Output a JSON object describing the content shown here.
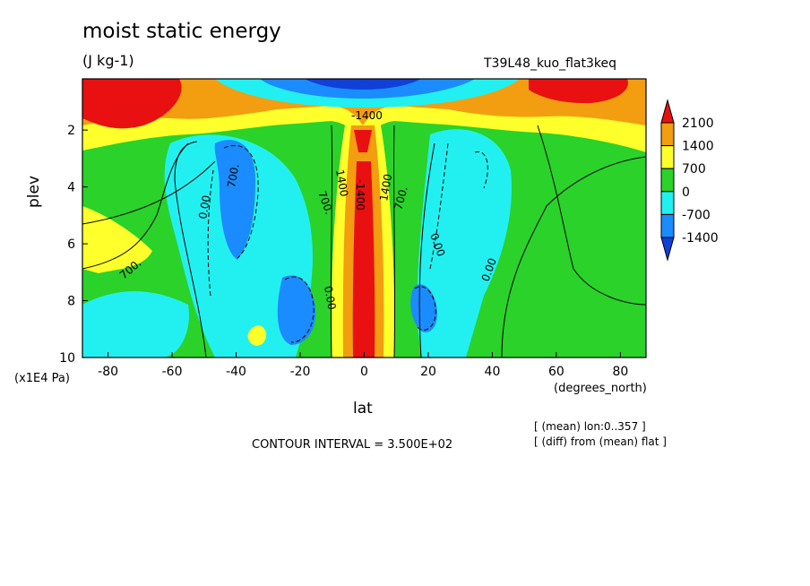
{
  "chart_data": {
    "type": "heatmap",
    "title": "moist static energy",
    "units": "(J kg-1)",
    "run_label": "T39L48_kuo_flat3keq",
    "xlabel": "lat",
    "x_units": "(degrees_north)",
    "ylabel": "plev",
    "y_units": "(x1E4 Pa)",
    "xlim": [
      -88,
      88
    ],
    "ylim": [
      10,
      0.2
    ],
    "x_ticks": [
      "-80",
      "-60",
      "-40",
      "-20",
      "0",
      "20",
      "40",
      "60",
      "80"
    ],
    "y_ticks": [
      "2",
      "4",
      "6",
      "8",
      "10"
    ],
    "colorbar": {
      "labels": [
        "2100",
        "1400",
        "700",
        "0",
        "-700",
        "-1400"
      ],
      "colors": [
        "#e81010",
        "#f39d10",
        "#ffff2b",
        "#2ad22a",
        "#22f0f0",
        "#1a8cff",
        "#1040d8"
      ]
    },
    "contour_interval": "CONTOUR INTERVAL = 3.500E+02",
    "contour_labels": [
      "700.",
      "0.00",
      "700.",
      "700.",
      "1400",
      "-1400",
      "1400",
      "700.",
      "0.00",
      "0.00",
      "0.00",
      "-1400"
    ],
    "notes": [
      "[ (mean) lon:0..357 ]",
      "[ (diff) from (mean) flat ]"
    ]
  }
}
